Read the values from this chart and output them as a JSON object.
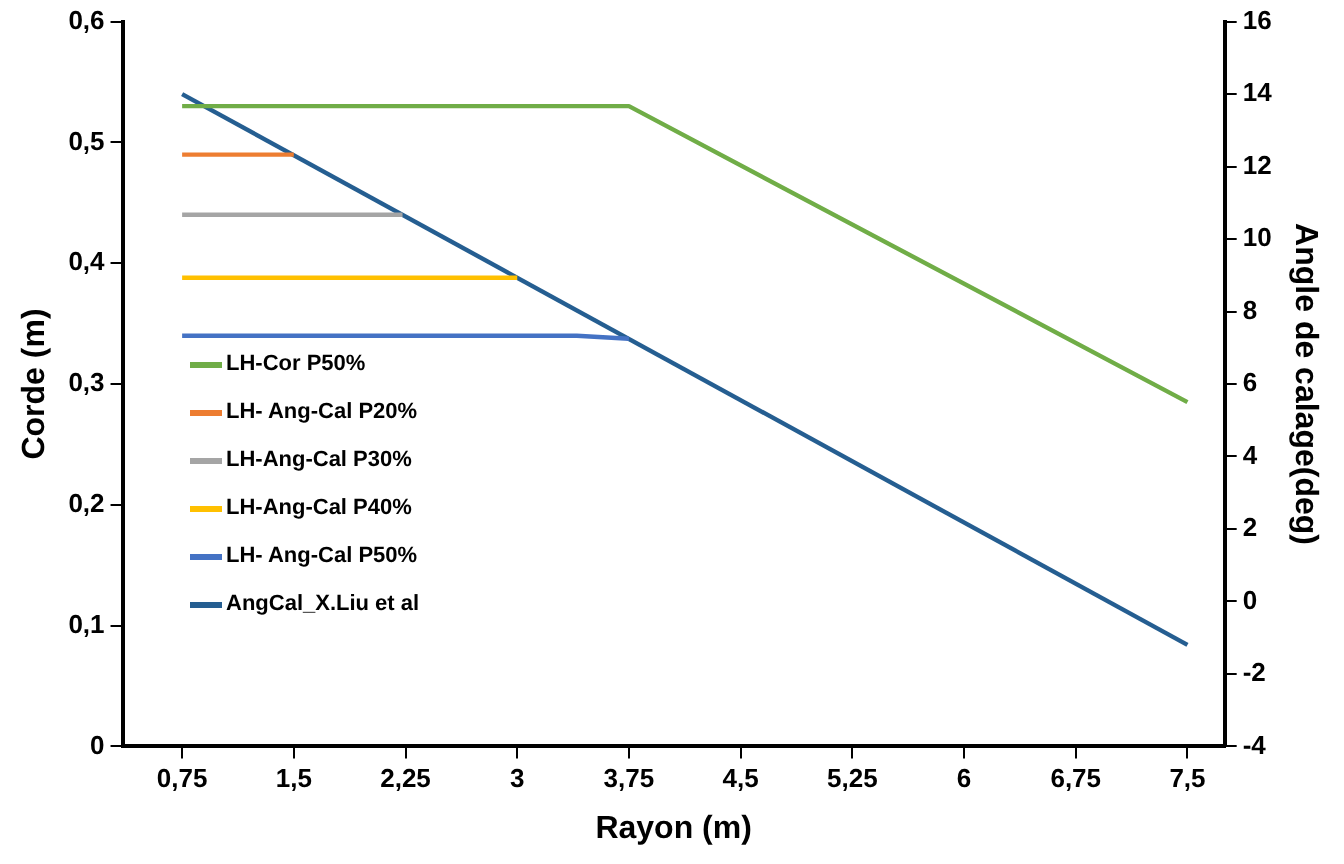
{
  "chart_data": {
    "type": "line",
    "xlabel": "Rayon (m)",
    "ylabel": "Corde (m)",
    "y2label": "Angle de calage(deg)",
    "xlim": [
      0.35,
      7.75
    ],
    "xticks": [
      {
        "value": 0.75,
        "label": "0,75"
      },
      {
        "value": 1.5,
        "label": "1,5"
      },
      {
        "value": 2.25,
        "label": "2,25"
      },
      {
        "value": 3,
        "label": "3"
      },
      {
        "value": 3.75,
        "label": "3,75"
      },
      {
        "value": 4.5,
        "label": "4,5"
      },
      {
        "value": 5.25,
        "label": "5,25"
      },
      {
        "value": 6,
        "label": "6"
      },
      {
        "value": 6.75,
        "label": "6,75"
      },
      {
        "value": 7.5,
        "label": "7,5"
      }
    ],
    "ylim": [
      0,
      0.6
    ],
    "yticks": [
      {
        "value": 0,
        "label": "0"
      },
      {
        "value": 0.1,
        "label": "0,1"
      },
      {
        "value": 0.2,
        "label": "0,2"
      },
      {
        "value": 0.3,
        "label": "0,3"
      },
      {
        "value": 0.4,
        "label": "0,4"
      },
      {
        "value": 0.5,
        "label": "0,5"
      },
      {
        "value": 0.6,
        "label": "0,6"
      }
    ],
    "y2lim": [
      -4,
      16
    ],
    "y2ticks": [
      -4,
      -2,
      0,
      2,
      4,
      6,
      8,
      10,
      12,
      14,
      16
    ],
    "grid": false,
    "legend": "left",
    "marker": "none",
    "line_style": "solid",
    "series": [
      {
        "name": "LH-Cor  P50%",
        "color": "#70ad47",
        "x": [
          0.75,
          3.75,
          7.5
        ],
        "values": [
          0.53,
          0.53,
          0.285
        ]
      },
      {
        "name": "LH- Ang-Cal P20%",
        "color": "#ed7d31",
        "axis": "y2",
        "x": [
          0.75,
          1.5
        ],
        "values": [
          12.33,
          12.33
        ]
      },
      {
        "name": "LH-Ang-Cal P30%",
        "color": "#a5a5a5",
        "axis": "y2",
        "x": [
          0.75,
          2.23
        ],
        "values": [
          10.67,
          10.67
        ]
      },
      {
        "name": "LH-Ang-Cal P40%",
        "color": "#ffc000",
        "axis": "y2",
        "x": [
          0.75,
          3.0
        ],
        "values": [
          8.93,
          8.93
        ]
      },
      {
        "name": "LH- Ang-Cal P50%",
        "color": "#4472c4",
        "axis": "y2",
        "x": [
          0.75,
          3.4,
          3.75
        ],
        "values": [
          7.33,
          7.33,
          7.25
        ]
      },
      {
        "name": "AngCal_X.Liu et al",
        "color": "#255e91",
        "axis": "y2",
        "x": [
          0.75,
          7.5
        ],
        "values": [
          14,
          -1.2
        ]
      }
    ]
  }
}
